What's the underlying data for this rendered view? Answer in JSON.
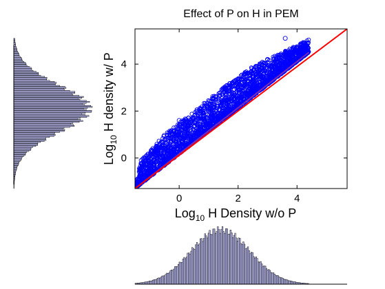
{
  "chart_data": [
    {
      "type": "scatter",
      "title": "Effect of P on H in PEM",
      "xlabel_main": "Log",
      "xlabel_sub": "10",
      "xlabel_rest": " H Density w/o P",
      "ylabel_main": "Log",
      "ylabel_sub": "10",
      "ylabel_rest": " H density w/ P",
      "xlim": [
        -1.5,
        5.7
      ],
      "ylim": [
        -1.3,
        5.5
      ],
      "xticks": [
        0,
        2,
        4
      ],
      "yticks": [
        0,
        2,
        4
      ],
      "xtick_labels": [
        "0",
        "2",
        "4"
      ],
      "ytick_labels": [
        "0",
        "2",
        "4"
      ],
      "grid": false,
      "marker_color": "#0000ff",
      "series": [
        {
          "type": "scatter-band",
          "color": "#0000ff",
          "x_range": [
            -1.5,
            4.4
          ],
          "lower_bound": [
            [
              -1.5,
              -1.3
            ],
            [
              4.4,
              4.5
            ]
          ],
          "upper_bound": [
            [
              -1.5,
              -1.2
            ],
            [
              -1.3,
              -0.1
            ],
            [
              -0.5,
              1.0
            ],
            [
              0.5,
              2.0
            ],
            [
              1.5,
              3.0
            ],
            [
              2.5,
              3.9
            ],
            [
              3.5,
              4.5
            ],
            [
              4.3,
              5.0
            ],
            [
              4.4,
              5.1
            ]
          ],
          "outliers": [
            [
              3.6,
              5.1
            ],
            [
              1.8,
              3.2
            ],
            [
              0.0,
              1.6
            ],
            [
              3.0,
              4.2
            ],
            [
              2.6,
              3.9
            ],
            [
              1.6,
              2.9
            ]
          ]
        },
        {
          "type": "line",
          "color": "#ff0000",
          "x": [
            -1.5,
            5.7
          ],
          "y": [
            -1.3,
            5.5
          ]
        },
        {
          "type": "line",
          "color": "#7a2bb0",
          "x": [
            -1.5,
            4.4
          ],
          "y": [
            -1.3,
            4.5
          ]
        }
      ]
    },
    {
      "type": "bar",
      "orientation": "vertical",
      "fill": "#c8c8ff",
      "stroke": "#000000",
      "x_range": [
        -1.5,
        4.4
      ],
      "distribution": "normal",
      "mean": 1.4,
      "sd": 1.0
    },
    {
      "type": "bar",
      "orientation": "horizontal",
      "fill": "#c8c8ff",
      "stroke": "#000000",
      "y_range": [
        -1.3,
        5.1
      ],
      "distribution": "normal",
      "mean": 2.1,
      "sd": 1.0
    }
  ]
}
